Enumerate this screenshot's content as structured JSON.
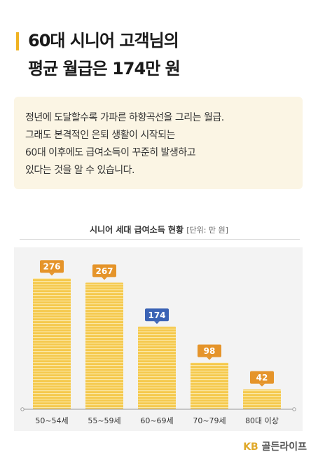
{
  "header": {
    "title_line1": "60대 시니어 고객님의",
    "title_line2": "평균 월급은 174만 원"
  },
  "info": {
    "line1": "정년에 도달할수록 가파른 하향곡선을 그리는 월급.",
    "line2": "그래도 본격적인 은퇴 생활이 시작되는",
    "line3": "60대 이후에도 급여소득이 꾸준히 발생하고",
    "line4": "있다는 것을 알 수 있습니다."
  },
  "brand": {
    "kb": "KB",
    "name": "골든라이프"
  },
  "colors": {
    "bar": "#f5c94d",
    "bar_stripe": "#fbe8a6",
    "label": "#e5942a",
    "highlight_label": "#3b63b5",
    "accent": "#f0b323"
  },
  "chart_data": {
    "type": "bar",
    "title": "시니어 세대 급여소득 현황",
    "unit": "[단위: 만 원]",
    "categories": [
      "50~54세",
      "55~59세",
      "60~69세",
      "70~79세",
      "80대 이상"
    ],
    "values": [
      276,
      267,
      174,
      98,
      42
    ],
    "highlight_index": 2,
    "ylim": [
      0,
      300
    ],
    "grid": false
  }
}
